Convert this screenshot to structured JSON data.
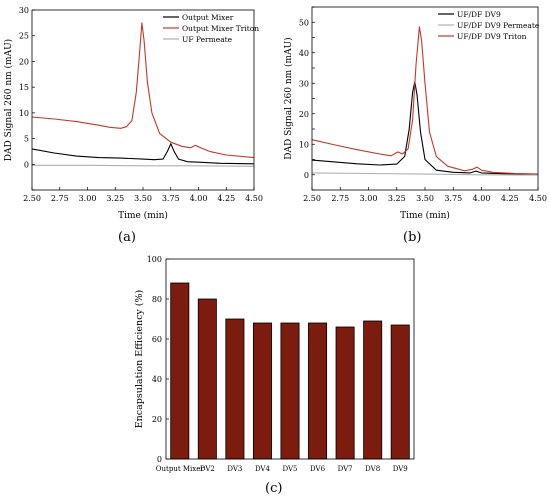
{
  "panels": {
    "a": {
      "label": "(a)"
    },
    "b": {
      "label": "(b)"
    },
    "c": {
      "label": "(c)"
    }
  },
  "chart_data": [
    {
      "id": "a",
      "type": "line",
      "title": "",
      "xlabel": "Time (min)",
      "ylabel": "DAD Signal 260 nm (mAU)",
      "xlim": [
        2.5,
        4.5
      ],
      "ylim": [
        -5,
        30
      ],
      "xticks": [
        2.5,
        2.75,
        3.0,
        3.25,
        3.5,
        3.75,
        4.0,
        4.25,
        4.5
      ],
      "xtick_labels": [
        "2.50",
        "2.75",
        "3.00",
        "3.25",
        "3.50",
        "3.75",
        "4.00",
        "4.25",
        "4.50"
      ],
      "yticks": [
        -5,
        0,
        5,
        10,
        15,
        20,
        25,
        30
      ],
      "ytick_labels": [
        "",
        "0",
        "5",
        "10",
        "15",
        "20",
        "25",
        "30"
      ],
      "legend_position": "top-right",
      "grid": false,
      "series": [
        {
          "name": "Output Mixer",
          "color": "#000000",
          "x": [
            2.5,
            2.7,
            2.9,
            3.1,
            3.3,
            3.5,
            3.6,
            3.68,
            3.72,
            3.75,
            3.78,
            3.82,
            3.9,
            4.0,
            4.2,
            4.5
          ],
          "y": [
            3.0,
            2.2,
            1.6,
            1.3,
            1.2,
            1.0,
            0.9,
            1.0,
            2.5,
            4.0,
            2.5,
            1.0,
            0.5,
            0.4,
            0.2,
            0.1
          ]
        },
        {
          "name": "Output Mixer Triton",
          "color": "#c0392b",
          "x": [
            2.5,
            2.7,
            2.9,
            3.1,
            3.2,
            3.3,
            3.35,
            3.4,
            3.44,
            3.47,
            3.49,
            3.51,
            3.54,
            3.58,
            3.65,
            3.75,
            3.85,
            3.93,
            3.97,
            4.02,
            4.1,
            4.25,
            4.5
          ],
          "y": [
            9.2,
            8.8,
            8.3,
            7.6,
            7.2,
            7.0,
            7.3,
            8.5,
            14.0,
            22.0,
            27.5,
            24.0,
            16.0,
            10.0,
            6.0,
            4.3,
            3.5,
            3.2,
            3.7,
            3.2,
            2.5,
            1.8,
            1.3
          ]
        },
        {
          "name": "UF Permeate",
          "color": "#b0b0b0",
          "x": [
            2.5,
            3.0,
            3.5,
            4.0,
            4.5
          ],
          "y": [
            -0.2,
            -0.2,
            -0.3,
            -0.3,
            -0.4
          ]
        }
      ]
    },
    {
      "id": "b",
      "type": "line",
      "title": "",
      "xlabel": "Time (min)",
      "ylabel": "DAD Signal 260 nm (mAU)",
      "xlim": [
        2.5,
        4.5
      ],
      "ylim": [
        -5,
        55
      ],
      "xticks": [
        2.5,
        2.75,
        3.0,
        3.25,
        3.5,
        3.75,
        4.0,
        4.25,
        4.5
      ],
      "xtick_labels": [
        "2.50",
        "2.75",
        "3.00",
        "3.25",
        "3.50",
        "3.75",
        "4.00",
        "4.25",
        "4.50"
      ],
      "yticks": [
        -5,
        0,
        5,
        10,
        15,
        20,
        25,
        30,
        35,
        40,
        45,
        50,
        55
      ],
      "ytick_labels": [
        "",
        "0",
        "",
        "10",
        "",
        "20",
        "",
        "30",
        "",
        "40",
        "",
        "50",
        ""
      ],
      "legend_position": "top-right",
      "grid": false,
      "series": [
        {
          "name": "UF/DF DV9",
          "color": "#000000",
          "x": [
            2.5,
            2.7,
            2.9,
            3.1,
            3.25,
            3.32,
            3.36,
            3.39,
            3.41,
            3.43,
            3.46,
            3.5,
            3.6,
            3.75,
            3.9,
            3.95,
            4.0,
            4.2,
            4.5
          ],
          "y": [
            4.8,
            4.2,
            3.6,
            3.2,
            3.5,
            6.0,
            15.0,
            27.0,
            30.5,
            26.0,
            14.0,
            5.0,
            1.5,
            0.8,
            0.6,
            1.2,
            0.6,
            0.3,
            0.2
          ]
        },
        {
          "name": "UF/DF DV9 Permeate",
          "color": "#b0b0b0",
          "x": [
            2.5,
            3.0,
            3.5,
            4.0,
            4.5
          ],
          "y": [
            0.6,
            0.4,
            0.2,
            0.0,
            -0.1
          ]
        },
        {
          "name": "UF/DF DV9 Triton",
          "color": "#c0392b",
          "x": [
            2.5,
            2.7,
            2.9,
            3.1,
            3.2,
            3.26,
            3.3,
            3.35,
            3.39,
            3.42,
            3.45,
            3.47,
            3.5,
            3.54,
            3.6,
            3.7,
            3.85,
            3.92,
            3.96,
            4.0,
            4.1,
            4.3,
            4.5
          ],
          "y": [
            11.5,
            9.8,
            8.2,
            6.8,
            6.2,
            7.5,
            6.8,
            8.5,
            18.0,
            36.0,
            48.5,
            44.0,
            30.0,
            14.0,
            6.0,
            2.8,
            1.3,
            1.8,
            2.5,
            1.5,
            0.8,
            0.4,
            0.2
          ]
        }
      ]
    },
    {
      "id": "c",
      "type": "bar",
      "title": "",
      "xlabel": "",
      "ylabel": "Encapsulation Efficiency (%)",
      "ylim": [
        0,
        100
      ],
      "yticks": [
        0,
        20,
        40,
        60,
        80,
        100
      ],
      "grid": false,
      "color": "#7b1c0e",
      "categories": [
        "Output Mixer",
        "DV2",
        "DV3",
        "DV4",
        "DV5",
        "DV6",
        "DV7",
        "DV8",
        "DV9"
      ],
      "values": [
        88,
        80,
        70,
        68,
        68,
        68,
        66,
        69,
        67
      ]
    }
  ]
}
